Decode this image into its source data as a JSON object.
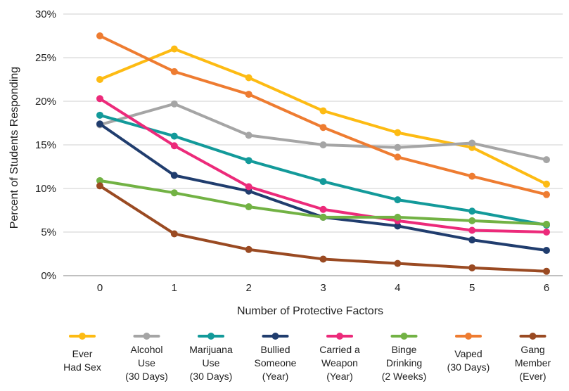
{
  "chart_data": {
    "type": "line",
    "title": "",
    "xlabel": "Number of Protective Factors",
    "ylabel": "Percent of Students Responding",
    "x": [
      0,
      1,
      2,
      3,
      4,
      5,
      6
    ],
    "x_tick_labels": [
      "0",
      "1",
      "2",
      "3",
      "4",
      "5",
      "6"
    ],
    "ylim": [
      0,
      30
    ],
    "y_ticks": [
      0,
      5,
      10,
      15,
      20,
      25,
      30
    ],
    "y_tick_labels": [
      "0%",
      "5%",
      "10%",
      "15%",
      "20%",
      "25%",
      "30%"
    ],
    "grid": "horizontal",
    "legend_position": "bottom",
    "series": [
      {
        "name": "Ever Had Sex",
        "legend_lines": [
          "Ever",
          "Had Sex"
        ],
        "color": "#FDBB13",
        "values": [
          22.5,
          26.0,
          22.7,
          18.9,
          16.4,
          14.7,
          10.5
        ]
      },
      {
        "name": "Alcohol Use (30 Days)",
        "legend_lines": [
          "Alcohol",
          "Use",
          "(30 Days)"
        ],
        "color": "#A5A5A5",
        "values": [
          17.3,
          19.7,
          16.1,
          15.0,
          14.7,
          15.2,
          13.3
        ]
      },
      {
        "name": "Marijuana Use (30 Days)",
        "legend_lines": [
          "Marijuana",
          "Use",
          "(30 Days)"
        ],
        "color": "#139A9A",
        "values": [
          18.4,
          16.0,
          13.2,
          10.8,
          8.7,
          7.4,
          5.8
        ]
      },
      {
        "name": "Bullied Someone (Year)",
        "legend_lines": [
          "Bullied",
          "Someone",
          "(Year)"
        ],
        "color": "#203D6E",
        "values": [
          17.4,
          11.5,
          9.7,
          6.7,
          5.7,
          4.1,
          2.9
        ]
      },
      {
        "name": "Carried a Weapon (Year)",
        "legend_lines": [
          "Carried a",
          "Weapon",
          "(Year)"
        ],
        "color": "#EC2A7A",
        "values": [
          20.3,
          14.9,
          10.2,
          7.6,
          6.3,
          5.2,
          5.0
        ]
      },
      {
        "name": "Binge Drinking (2 Weeks)",
        "legend_lines": [
          "Binge",
          "Drinking",
          "(2 Weeks)"
        ],
        "color": "#72B244",
        "values": [
          10.9,
          9.5,
          7.9,
          6.7,
          6.7,
          6.3,
          5.9
        ]
      },
      {
        "name": "Vaped (30 Days)",
        "legend_lines": [
          "Vaped",
          "(30 Days)"
        ],
        "color": "#EE7C31",
        "values": [
          27.5,
          23.4,
          20.8,
          17.0,
          13.6,
          11.4,
          9.3
        ]
      },
      {
        "name": "Gang Member (Ever)",
        "legend_lines": [
          "Gang",
          "Member",
          "(Ever)"
        ],
        "color": "#9A4A22",
        "values": [
          10.3,
          4.8,
          3.0,
          1.9,
          1.4,
          0.9,
          0.5
        ]
      }
    ]
  }
}
